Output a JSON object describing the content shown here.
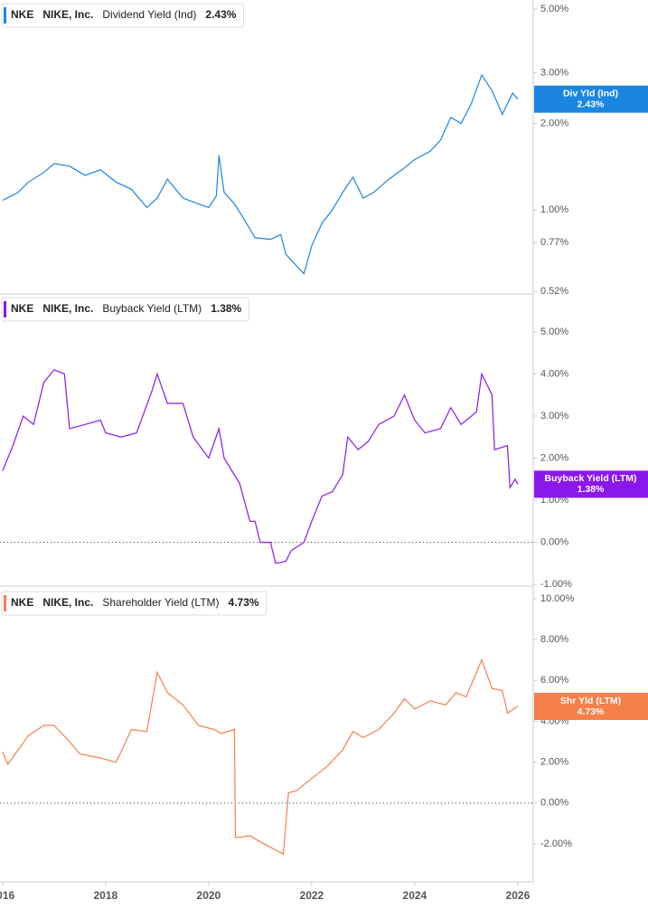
{
  "chart_data": [
    {
      "type": "line",
      "ticker": "NKE",
      "company": "NIKE, Inc.",
      "log_scale": true,
      "zero_line": false,
      "badge_label": "Div Yld (Ind)",
      "current": {
        "value": 2.43,
        "label": "2.43%"
      },
      "xlim": [
        2015.95,
        2026.3
      ],
      "ylim": [
        0.51,
        5.38
      ],
      "yticks": [
        {
          "value": 5,
          "label": "5.00%"
        },
        {
          "value": 3,
          "label": "3.00%"
        },
        {
          "value": 2,
          "label": "2.00%"
        },
        {
          "value": 1,
          "label": "1.00%"
        },
        {
          "value": 0.77,
          "label": "0.77%"
        },
        {
          "value": 0.52,
          "label": "0.52%"
        }
      ],
      "x": [
        2016.0,
        2016.3,
        2016.5,
        2016.8,
        2017.0,
        2017.3,
        2017.6,
        2017.9,
        2018.2,
        2018.5,
        2018.8,
        2019.0,
        2019.2,
        2019.5,
        2019.8,
        2020.0,
        2020.15,
        2020.2,
        2020.3,
        2020.5,
        2020.7,
        2020.9,
        2021.2,
        2021.4,
        2021.5,
        2021.7,
        2021.85,
        2022.0,
        2022.2,
        2022.4,
        2022.6,
        2022.8,
        2023.0,
        2023.2,
        2023.5,
        2023.8,
        2024.0,
        2024.3,
        2024.5,
        2024.7,
        2024.9,
        2025.1,
        2025.3,
        2025.5,
        2025.7,
        2025.9,
        2026.0
      ],
      "series": [
        {
          "name": "Dividend Yield (Ind)",
          "color": "#1a86e0",
          "values": [
            1.08,
            1.15,
            1.25,
            1.35,
            1.45,
            1.42,
            1.32,
            1.38,
            1.25,
            1.18,
            1.02,
            1.1,
            1.28,
            1.1,
            1.05,
            1.02,
            1.12,
            1.55,
            1.15,
            1.05,
            0.92,
            0.8,
            0.79,
            0.82,
            0.7,
            0.64,
            0.6,
            0.75,
            0.9,
            1.0,
            1.15,
            1.3,
            1.1,
            1.15,
            1.28,
            1.4,
            1.5,
            1.6,
            1.75,
            2.1,
            2.0,
            2.35,
            2.95,
            2.6,
            2.15,
            2.55,
            2.43
          ]
        }
      ]
    },
    {
      "type": "line",
      "ticker": "NKE",
      "company": "NIKE, Inc.",
      "log_scale": false,
      "zero_line": true,
      "badge_label": "Buyback Yield (LTM)",
      "current": {
        "value": 1.38,
        "label": "1.38%"
      },
      "xlim": [
        2015.95,
        2026.3
      ],
      "ylim": [
        -1.04,
        5.9
      ],
      "yticks": [
        {
          "value": 5,
          "label": "5.00%"
        },
        {
          "value": 4,
          "label": "4.00%"
        },
        {
          "value": 3,
          "label": "3.00%"
        },
        {
          "value": 2,
          "label": "2.00%"
        },
        {
          "value": 1,
          "label": "1.00%"
        },
        {
          "value": 0,
          "label": "0.00%"
        },
        {
          "value": -1,
          "label": "-1.00%"
        }
      ],
      "x": [
        2016.0,
        2016.2,
        2016.4,
        2016.6,
        2016.8,
        2017.0,
        2017.2,
        2017.3,
        2017.6,
        2017.9,
        2018.0,
        2018.3,
        2018.6,
        2018.9,
        2019.0,
        2019.2,
        2019.5,
        2019.7,
        2020.0,
        2020.2,
        2020.3,
        2020.6,
        2020.8,
        2020.9,
        2021.0,
        2021.2,
        2021.3,
        2021.5,
        2021.6,
        2021.85,
        2022.0,
        2022.2,
        2022.4,
        2022.6,
        2022.7,
        2022.9,
        2023.1,
        2023.3,
        2023.6,
        2023.8,
        2024.0,
        2024.2,
        2024.5,
        2024.7,
        2024.9,
        2025.2,
        2025.3,
        2025.5,
        2025.55,
        2025.8,
        2025.85,
        2025.95,
        2026.0
      ],
      "series": [
        {
          "name": "Buyback Yield (LTM)",
          "color": "#8a17ec",
          "values": [
            1.7,
            2.3,
            3.0,
            2.8,
            3.8,
            4.1,
            4.0,
            2.7,
            2.8,
            2.9,
            2.6,
            2.5,
            2.6,
            3.6,
            4.0,
            3.3,
            3.3,
            2.5,
            2.0,
            2.7,
            2.0,
            1.4,
            0.5,
            0.5,
            0.0,
            0.0,
            -0.5,
            -0.45,
            -0.2,
            0.0,
            0.5,
            1.1,
            1.2,
            1.6,
            2.5,
            2.2,
            2.4,
            2.8,
            3.0,
            3.5,
            2.9,
            2.6,
            2.7,
            3.2,
            2.8,
            3.1,
            4.0,
            3.5,
            2.2,
            2.3,
            1.3,
            1.5,
            1.38
          ]
        }
      ]
    },
    {
      "type": "line",
      "ticker": "NKE",
      "company": "NIKE, Inc.",
      "log_scale": false,
      "zero_line": true,
      "badge_label": "Shr Yld (LTM)",
      "current": {
        "value": 4.73,
        "label": "4.73%"
      },
      "xlim": [
        2015.95,
        2026.3
      ],
      "ylim": [
        -3.86,
        10.53
      ],
      "yticks": [
        {
          "value": 10,
          "label": "10.00%"
        },
        {
          "value": 8,
          "label": "8.00%"
        },
        {
          "value": 6,
          "label": "6.00%"
        },
        {
          "value": 4,
          "label": "4.00%"
        },
        {
          "value": 2,
          "label": "2.00%"
        },
        {
          "value": 0,
          "label": "0.00%"
        },
        {
          "value": -2,
          "label": "-2.00%"
        }
      ],
      "xticks": [
        2016,
        2018,
        2020,
        2022,
        2024,
        2026
      ],
      "x": [
        2016.0,
        2016.1,
        2016.3,
        2016.5,
        2016.8,
        2017.0,
        2017.3,
        2017.5,
        2017.9,
        2018.2,
        2018.3,
        2018.5,
        2018.8,
        2019.0,
        2019.2,
        2019.5,
        2019.8,
        2020.1,
        2020.25,
        2020.5,
        2020.52,
        2020.8,
        2021.0,
        2021.3,
        2021.45,
        2021.55,
        2021.7,
        2022.0,
        2022.3,
        2022.6,
        2022.8,
        2023.0,
        2023.3,
        2023.6,
        2023.8,
        2024.0,
        2024.3,
        2024.6,
        2024.8,
        2025.0,
        2025.3,
        2025.5,
        2025.7,
        2025.8,
        2026.0
      ],
      "series": [
        {
          "name": "Shareholder Yield (LTM)",
          "color": "#f5804a",
          "values": [
            2.5,
            1.9,
            2.6,
            3.3,
            3.8,
            3.8,
            3.0,
            2.4,
            2.2,
            2.0,
            2.5,
            3.6,
            3.5,
            6.4,
            5.4,
            4.8,
            3.8,
            3.6,
            3.4,
            3.6,
            -1.7,
            -1.6,
            -1.9,
            -2.3,
            -2.5,
            0.5,
            0.6,
            1.2,
            1.8,
            2.6,
            3.5,
            3.2,
            3.6,
            4.4,
            5.1,
            4.6,
            5.0,
            4.8,
            5.4,
            5.2,
            7.0,
            5.6,
            5.5,
            4.4,
            4.73
          ]
        }
      ]
    }
  ]
}
